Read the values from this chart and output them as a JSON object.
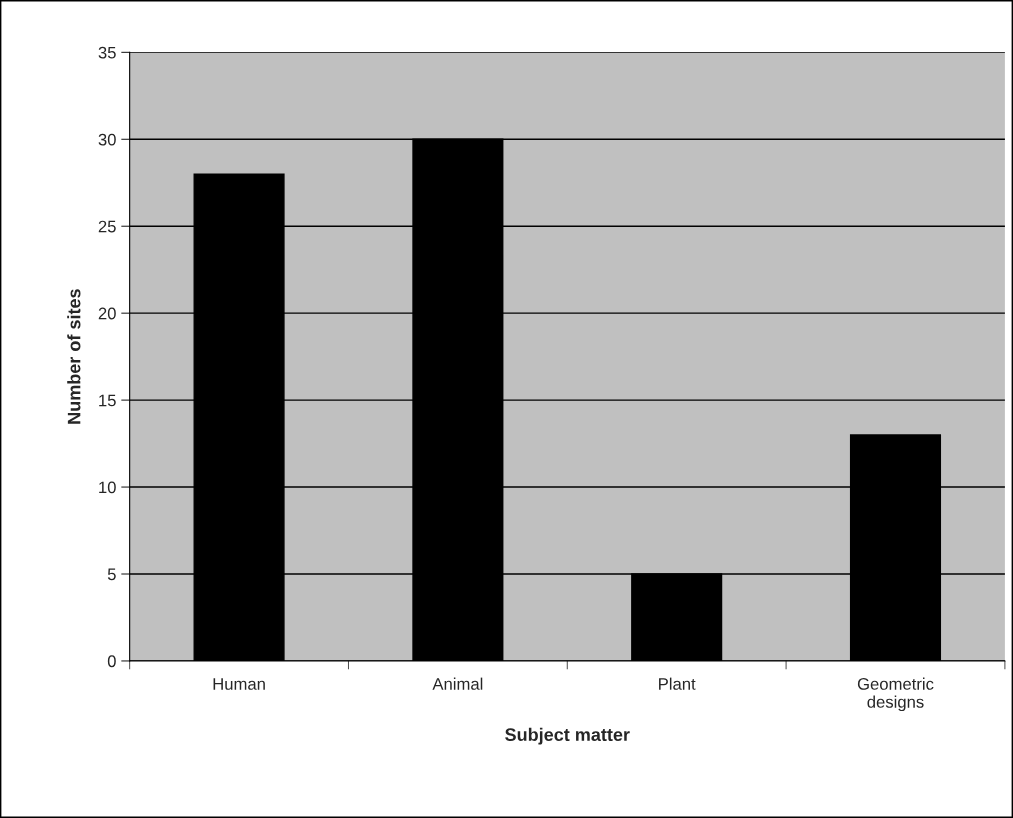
{
  "chart_data": {
    "type": "bar",
    "xlabel": "Subject matter",
    "ylabel": "Number of sites",
    "categories": [
      "Human",
      "Animal",
      "Plant",
      "Geometric\ndesigns"
    ],
    "values": [
      28,
      30,
      5,
      13
    ],
    "color": "#000000",
    "ylim": [
      0,
      35
    ],
    "yticks": [
      0,
      5,
      10,
      15,
      20,
      25,
      30,
      35
    ],
    "grid": "y"
  }
}
